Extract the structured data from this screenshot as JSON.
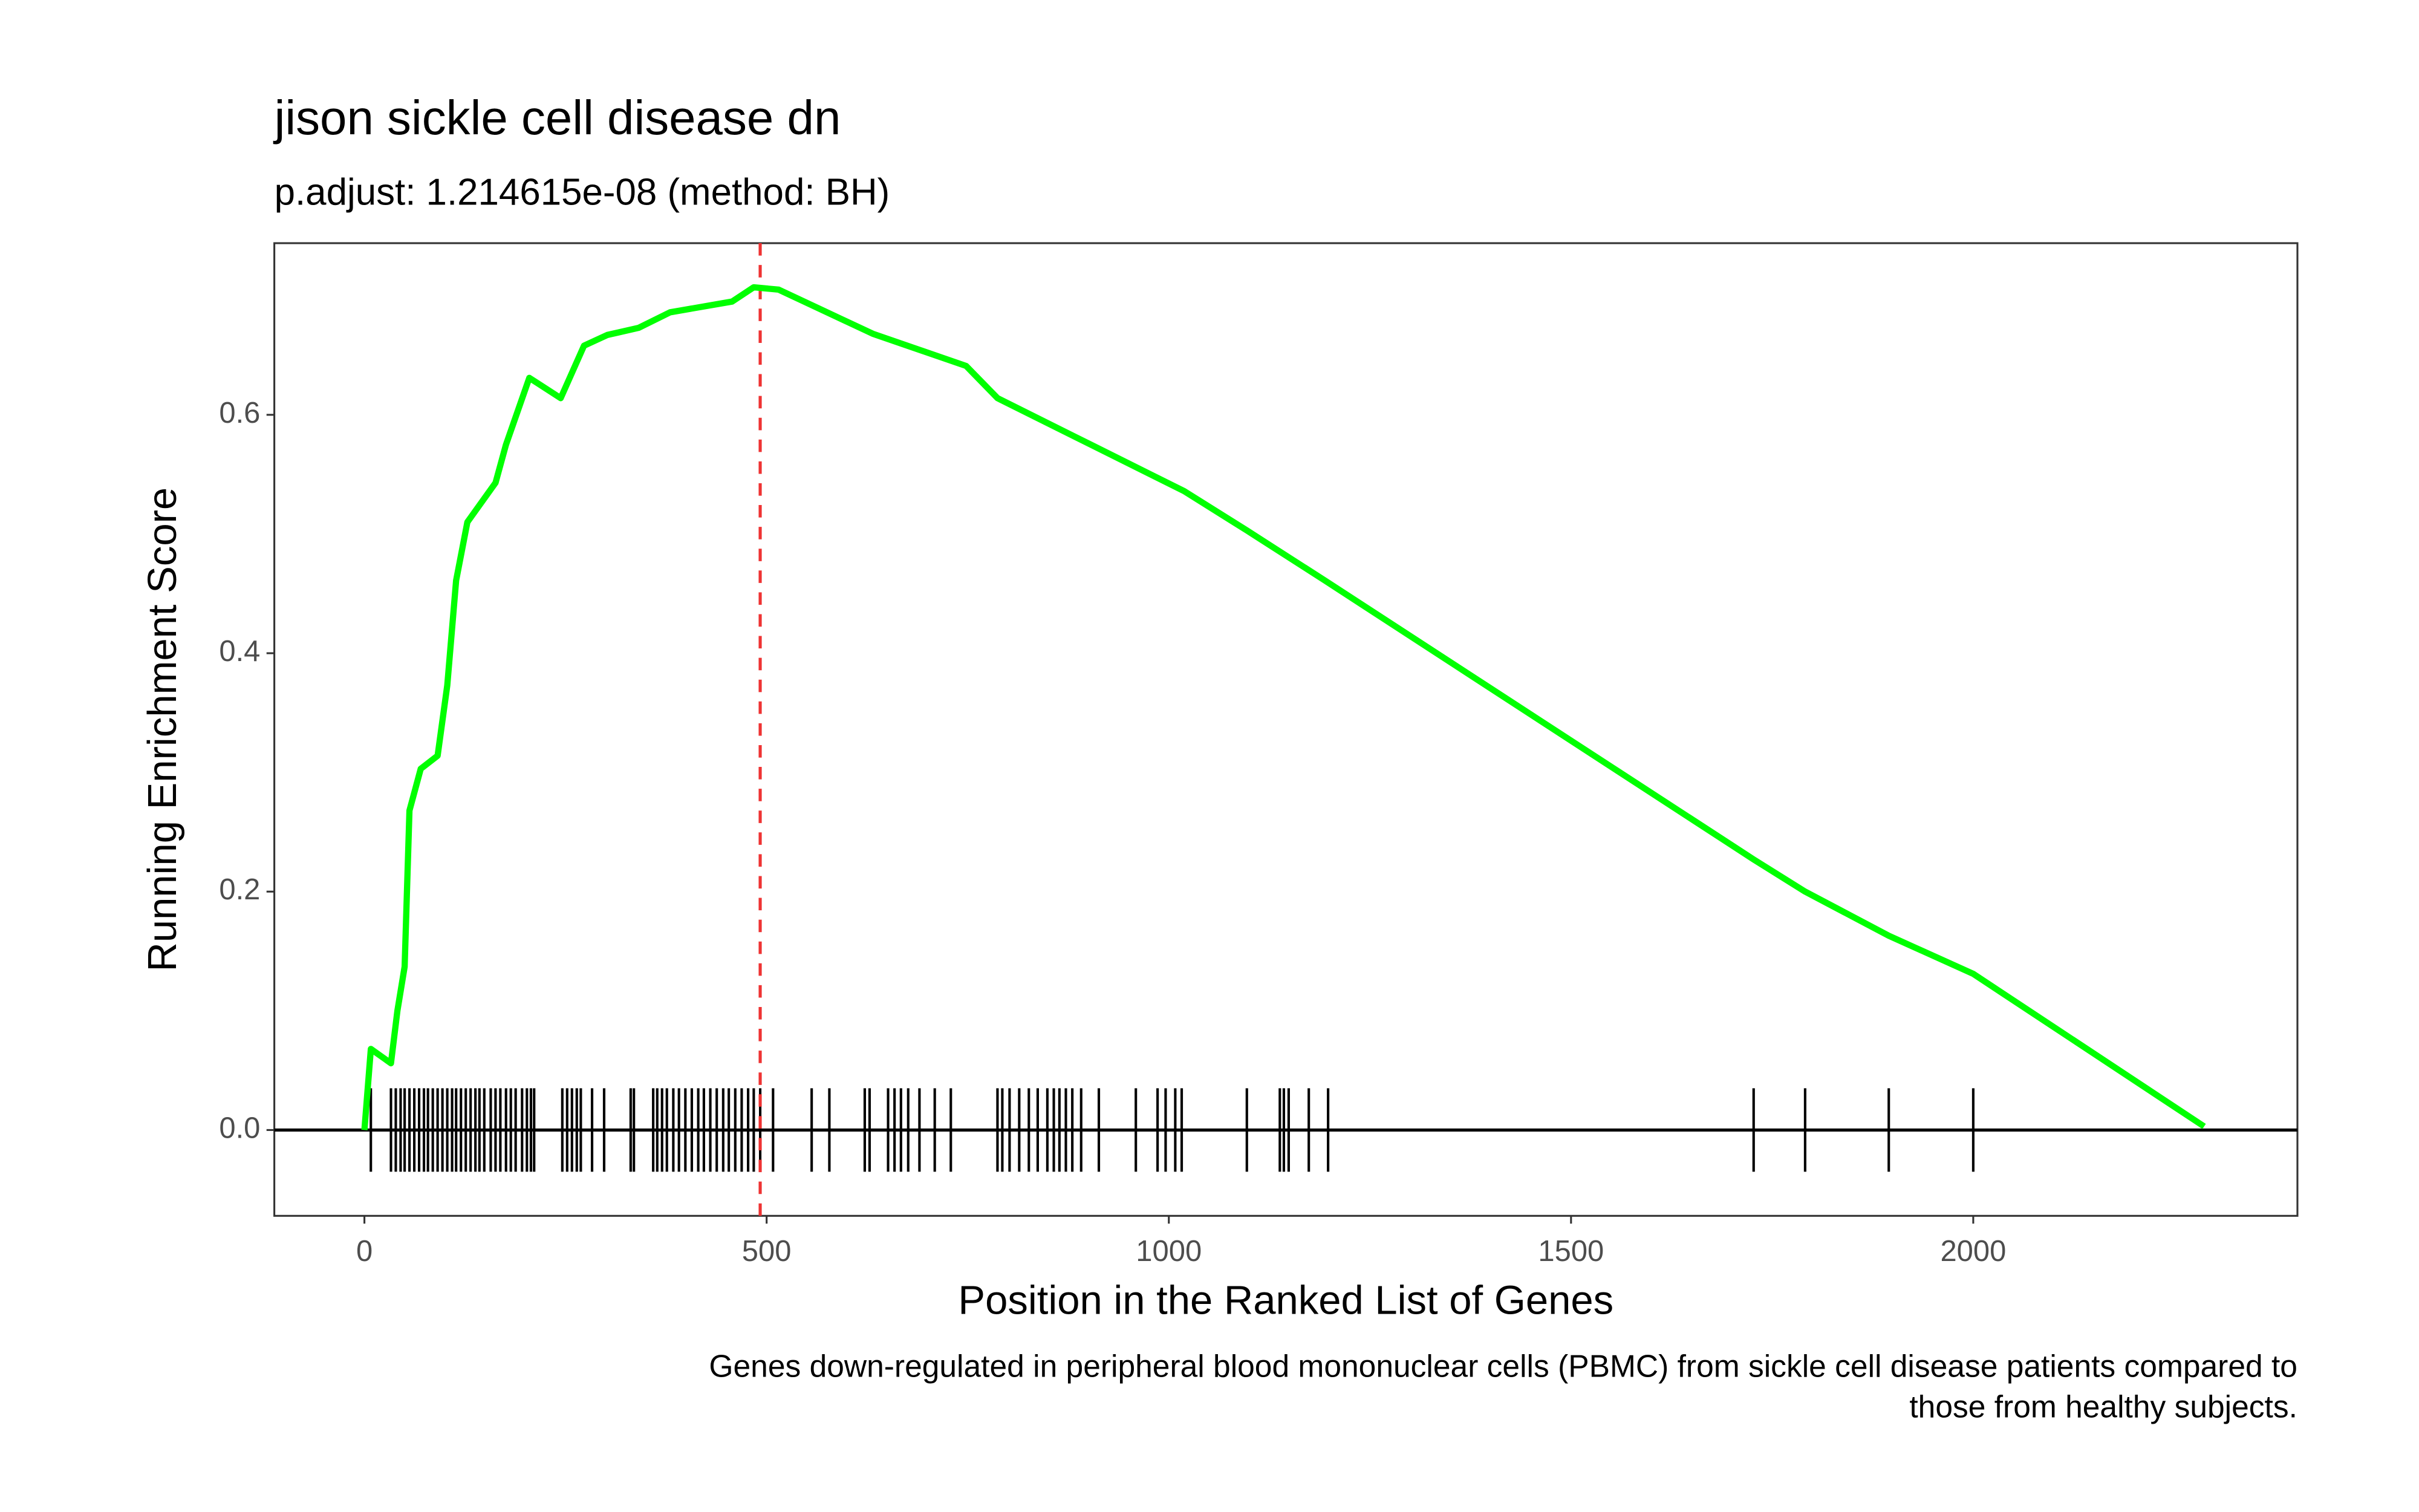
{
  "chart_data": {
    "type": "line",
    "title": "jison sickle cell disease dn",
    "subtitle": "p.adjust: 1.214615e-08 (method: BH)",
    "x_label": "Position in the Ranked List of Genes",
    "y_label": "Running Enrichment Score",
    "caption": [
      "Genes down-regulated in peripheral blood mononuclear cells (PBMC) from sickle cell disease patients compared to",
      "those from healthy subjects."
    ],
    "x": [
      0,
      8,
      33,
      41,
      50,
      56,
      70,
      91,
      103,
      114,
      128,
      163,
      176,
      205,
      244,
      273,
      302,
      341,
      380,
      457,
      484,
      515,
      632,
      748,
      787,
      903,
      1019,
      1097,
      1194,
      1727,
      1791,
      1895,
      2000,
      2287
    ],
    "series": [
      {
        "color": "#00ff00",
        "values": [
          0,
          0.068,
          0.056,
          0.1,
          0.137,
          0.268,
          0.303,
          0.314,
          0.373,
          0.461,
          0.51,
          0.543,
          0.575,
          0.631,
          0.614,
          0.658,
          0.667,
          0.673,
          0.686,
          0.695,
          0.707,
          0.705,
          0.668,
          0.641,
          0.614,
          0.575,
          0.536,
          0.503,
          0.461,
          0.227,
          0.2,
          0.163,
          0.131,
          0.003
        ]
      }
    ],
    "hits": [
      8,
      33,
      39,
      45,
      50,
      56,
      62,
      68,
      74,
      79,
      85,
      91,
      97,
      103,
      109,
      114,
      120,
      126,
      132,
      138,
      143,
      149,
      157,
      163,
      169,
      176,
      182,
      188,
      196,
      202,
      207,
      211,
      246,
      252,
      258,
      264,
      269,
      283,
      298,
      331,
      335,
      359,
      364,
      370,
      376,
      384,
      391,
      399,
      407,
      415,
      422,
      430,
      438,
      446,
      453,
      461,
      469,
      477,
      484,
      492,
      508,
      556,
      578,
      622,
      628,
      651,
      659,
      667,
      676,
      690,
      709,
      729,
      787,
      793,
      802,
      814,
      826,
      837,
      849,
      857,
      864,
      872,
      880,
      891,
      913,
      959,
      986,
      996,
      1008,
      1016,
      1097,
      1138,
      1143,
      1149,
      1174,
      1198,
      1727,
      1791,
      1895,
      2000
    ],
    "vline": {
      "x": 492,
      "color": "#ee3333"
    },
    "xlim": [
      -112,
      2403
    ],
    "ylim": [
      -0.072,
      0.744
    ],
    "xticks": [
      0,
      500,
      1000,
      1500,
      2000
    ],
    "yticks": [
      {
        "value": 0,
        "label": "0.0"
      },
      0.2,
      0.4,
      0.6
    ],
    "grid": false
  }
}
